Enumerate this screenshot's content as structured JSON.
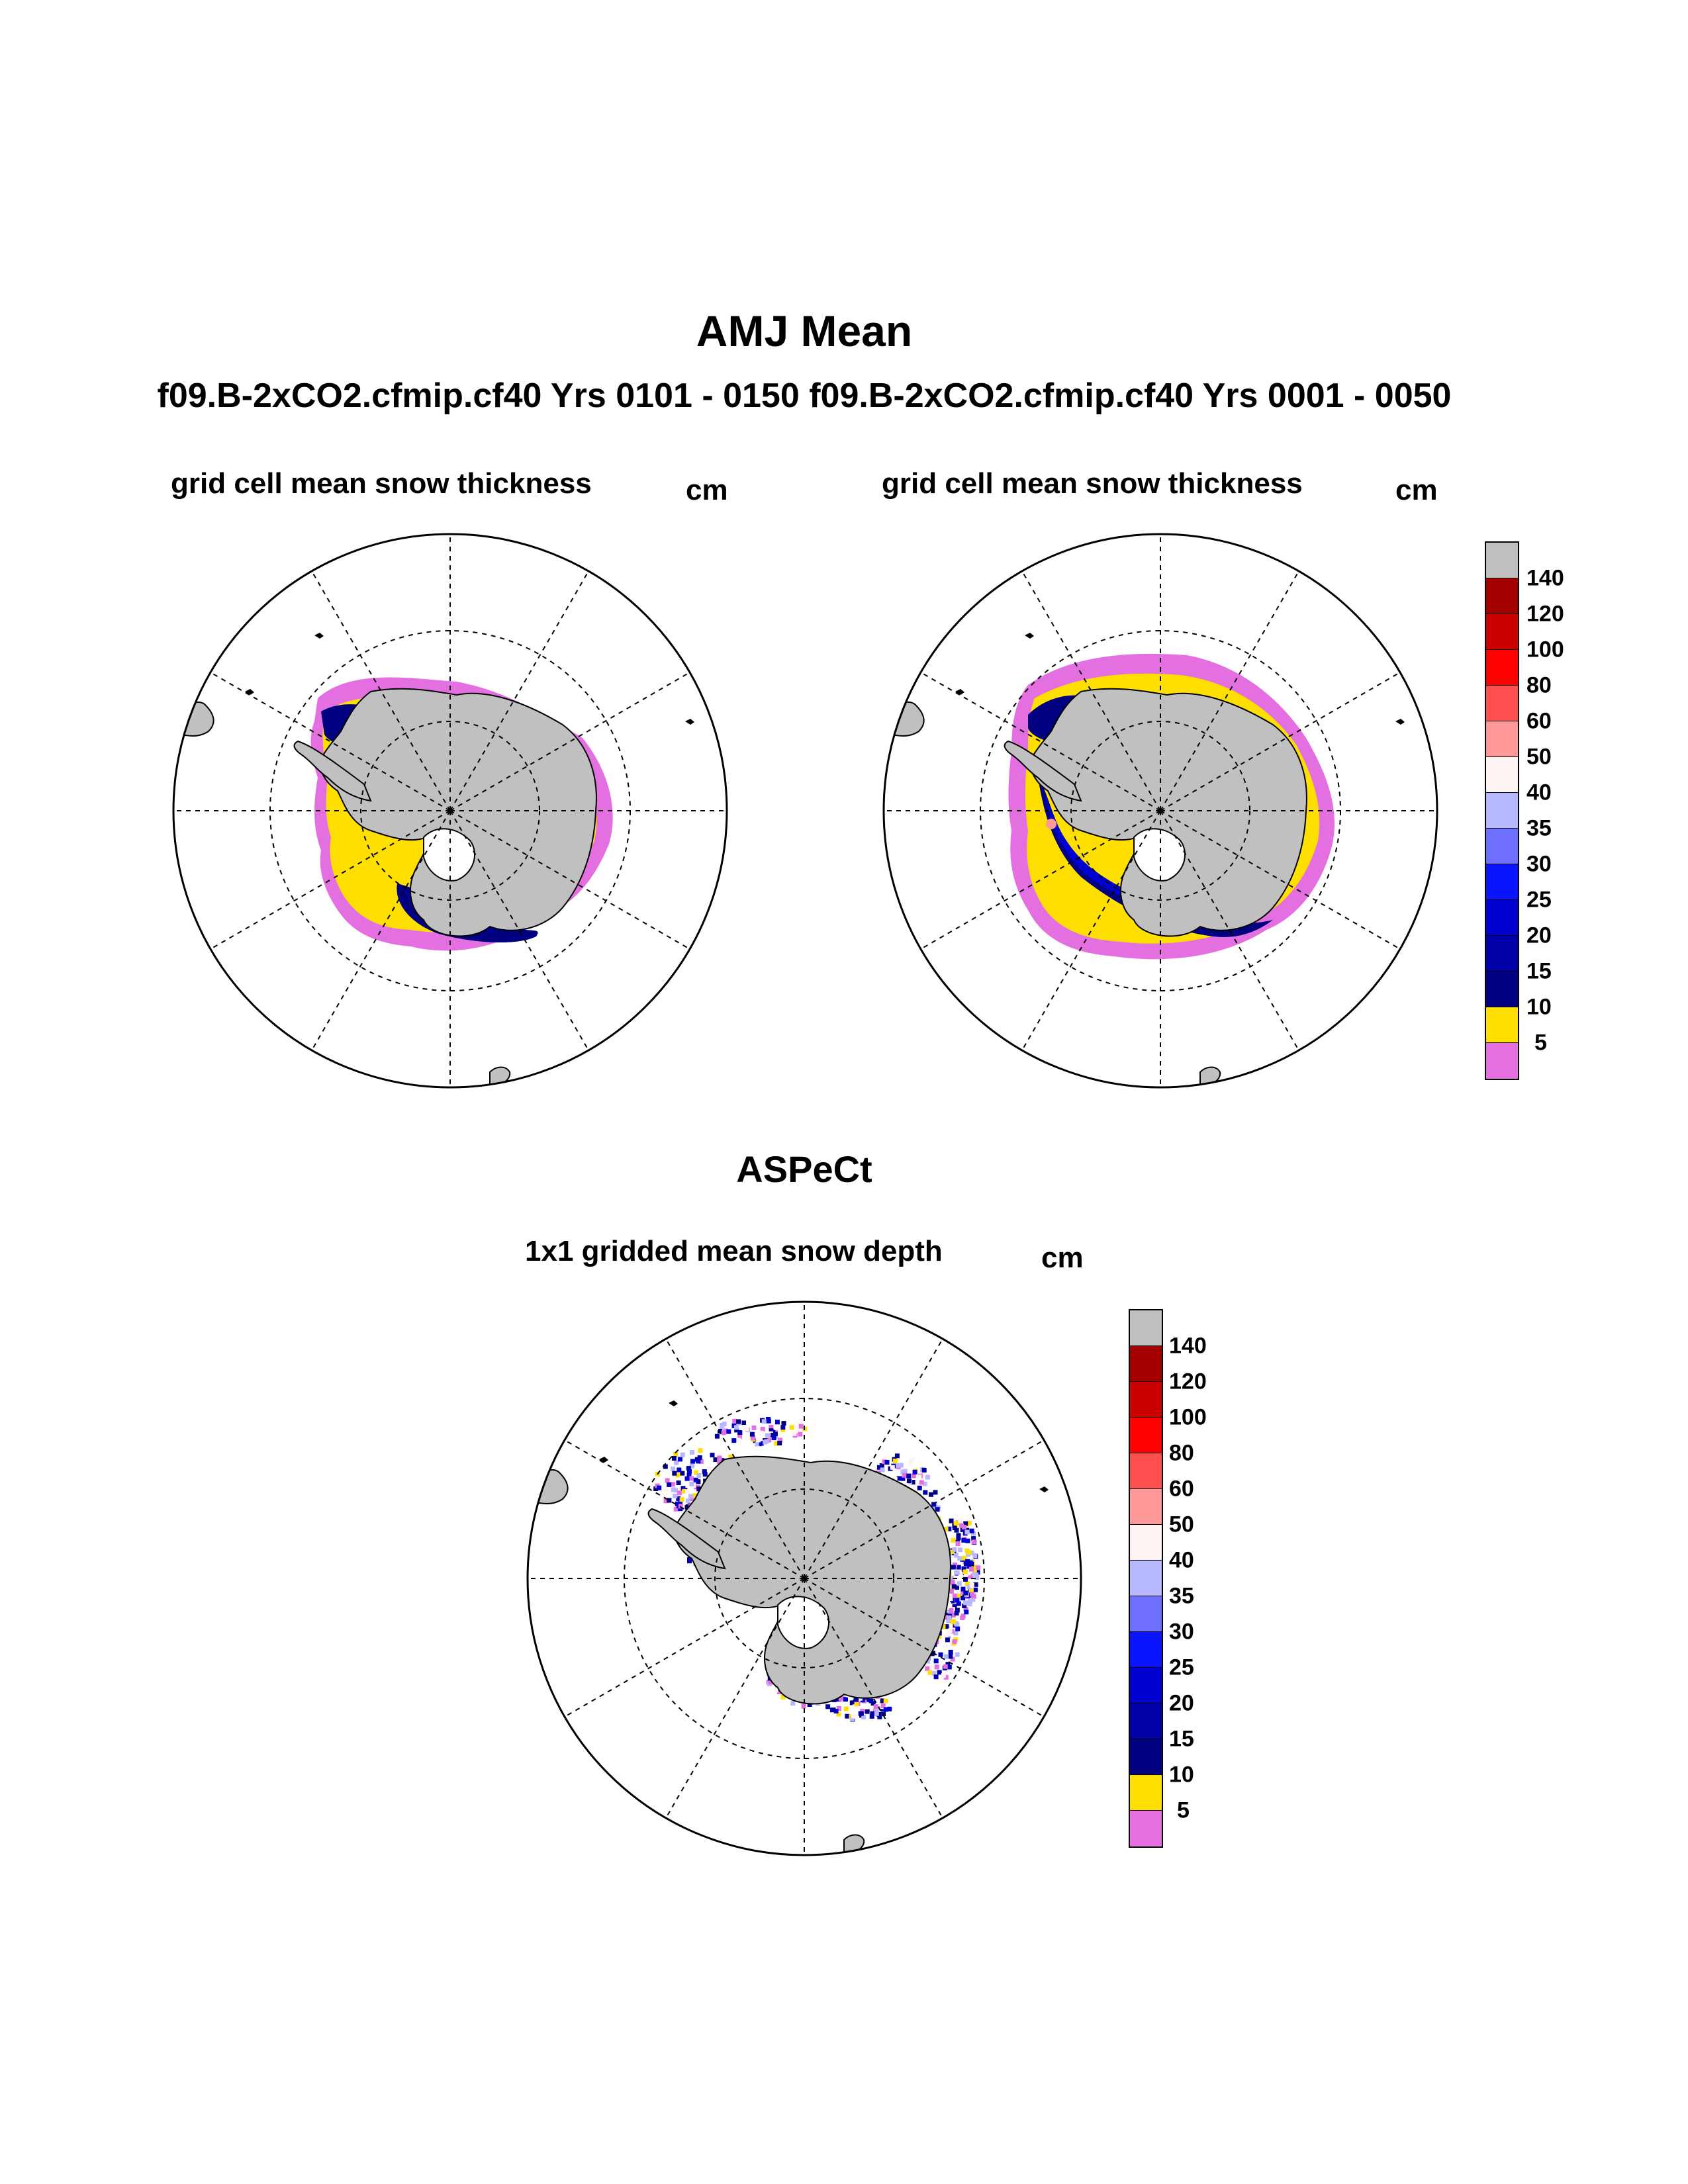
{
  "figure": {
    "title": "AMJ Mean",
    "subtitle": "f09.B-2xCO2.cfmip.cf40  Yrs 0101 - 0150 f09.B-2xCO2.cfmip.cf40  Yrs 0001 - 0050"
  },
  "panels": [
    {
      "id": "left",
      "title": "grid cell mean snow thickness",
      "unit": "cm"
    },
    {
      "id": "right",
      "title": "grid cell mean snow thickness",
      "unit": "cm"
    }
  ],
  "bottom_section": {
    "title": "ASPeCt",
    "panel": {
      "title": "1x1 gridded mean snow depth",
      "unit": "cm"
    }
  },
  "colorbar": {
    "labels": [
      "140",
      "120",
      "100",
      "80",
      "60",
      "50",
      "40",
      "35",
      "30",
      "25",
      "20",
      "15",
      "10",
      "5"
    ],
    "colors": [
      "#c0c0c0",
      "#a50000",
      "#cc0000",
      "#ff0000",
      "#ff5050",
      "#ff9999",
      "#fff4f4",
      "#b8b8ff",
      "#6e6eff",
      "#0a14ff",
      "#0000d0",
      "#0000a8",
      "#000080",
      "#ffdf00",
      "#e36fe0"
    ]
  },
  "colors": {
    "land": "#c0c0c0",
    "pink_5": "#e36fe0",
    "yellow_10": "#ffdf00",
    "navy_15": "#000080",
    "blue_20": "#0000a8",
    "blue_25": "#0000d0",
    "grid": "#000000"
  }
}
